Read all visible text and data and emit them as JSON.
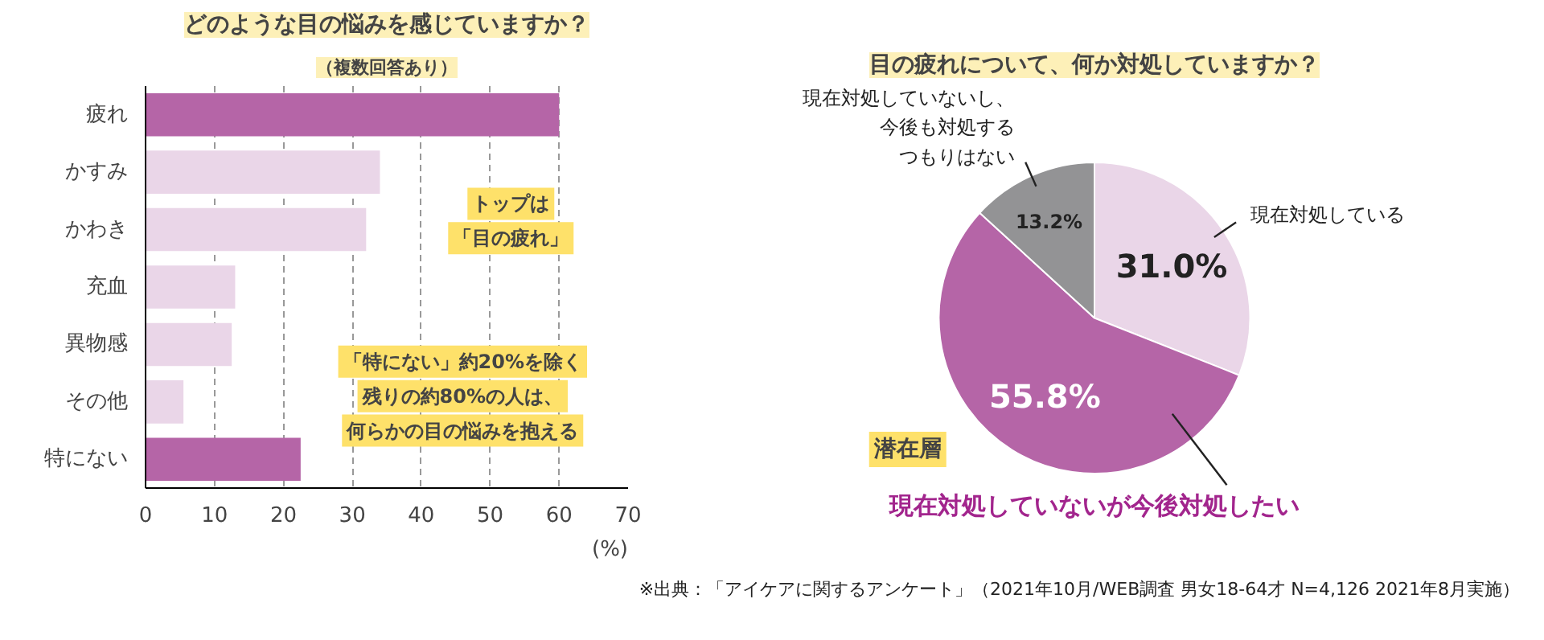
{
  "chart_data": [
    {
      "type": "bar",
      "orientation": "horizontal",
      "title": "どのような目の悩みを感じていますか？",
      "subtitle": "（複数回答あり）",
      "xlabel": "(%)",
      "categories": [
        "疲れ",
        "かすみ",
        "かわき",
        "充血",
        "異物感",
        "その他",
        "特にない"
      ],
      "values": [
        60,
        34,
        32,
        13,
        12.5,
        5.5,
        22.5
      ],
      "colors": [
        "#b565a7",
        "#ead6e8",
        "#ead6e8",
        "#ead6e8",
        "#ead6e8",
        "#ead6e8",
        "#b565a7"
      ],
      "xlim": [
        0,
        70
      ],
      "xticks": [
        0,
        10,
        20,
        30,
        40,
        50,
        60,
        70
      ],
      "grid": "x",
      "annotations": [
        "トップは",
        "「目の疲れ」",
        "「特にない」約20%を除く",
        "残りの約80%の人は、",
        "何らかの目の悩みを抱える"
      ]
    },
    {
      "type": "pie",
      "title": "目の疲れについて、何か対処していますか？",
      "categories": [
        "現在対処している",
        "現在対処していないが今後対処したい",
        "現在対処していないし、今後も対処するつもりはない"
      ],
      "values": [
        31.0,
        55.8,
        13.2
      ],
      "colors": [
        "#ead6e8",
        "#b565a7",
        "#939395"
      ],
      "value_labels": [
        "31.0%",
        "55.8%",
        "13.2%"
      ],
      "annotations": [
        "潜在層",
        "※出典：「アイケアに関するアンケート」（2021年10月/WEB調査 男女18-64才 N=4,126 2021年8月実施）"
      ]
    }
  ]
}
